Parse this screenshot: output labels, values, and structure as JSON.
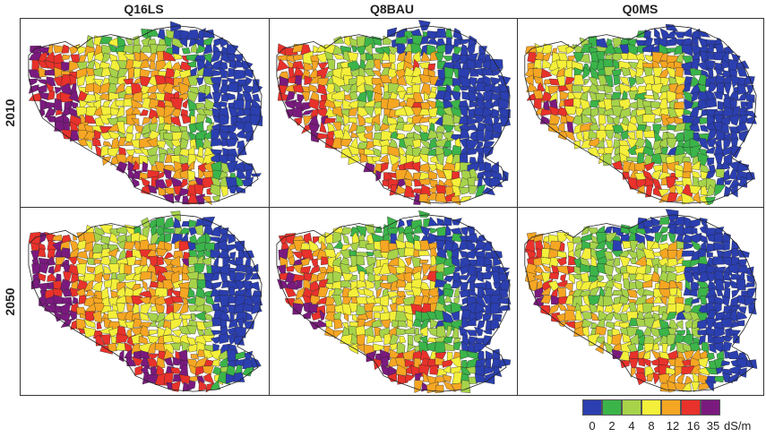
{
  "columns": [
    "Q16LS",
    "Q8BAU",
    "Q0MS"
  ],
  "rows": [
    "2010",
    "2050"
  ],
  "legend": {
    "ticks": [
      "0",
      "2",
      "4",
      "8",
      "12",
      "16",
      "35"
    ],
    "unit": "dS/m",
    "colors": [
      "#2b3fb0",
      "#3bb44a",
      "#a7d34a",
      "#f3ef3a",
      "#f5a623",
      "#e8322b",
      "#7a1a7e"
    ]
  },
  "panels": [
    {
      "column": "Q16LS",
      "row": "2010",
      "level_bias": 0.9
    },
    {
      "column": "Q8BAU",
      "row": "2010",
      "level_bias": 0.4
    },
    {
      "column": "Q0MS",
      "row": "2010",
      "level_bias": -0.3
    },
    {
      "column": "Q16LS",
      "row": "2050",
      "level_bias": 1.1
    },
    {
      "column": "Q8BAU",
      "row": "2050",
      "level_bias": 0.3
    },
    {
      "column": "Q0MS",
      "row": "2050",
      "level_bias": -0.2
    }
  ]
}
